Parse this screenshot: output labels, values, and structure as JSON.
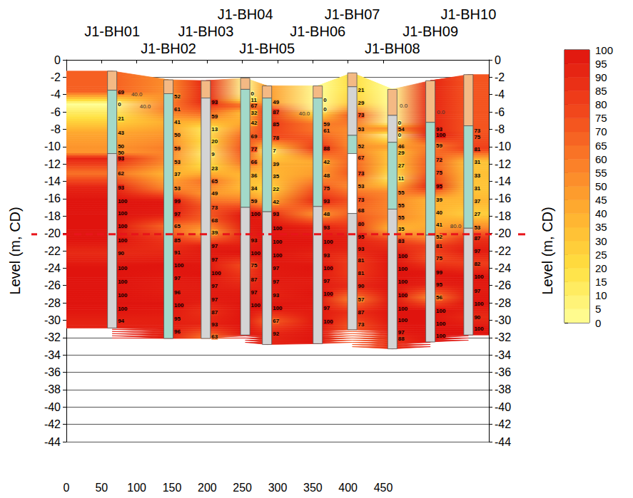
{
  "chart_data": {
    "type": "contour",
    "ylabel": "Level (m, CD)",
    "y2label": "Level (m, CD)",
    "xlim": [
      0,
      600
    ],
    "xticks": [
      0,
      50,
      100,
      150,
      200,
      250,
      300,
      350,
      400,
      450
    ],
    "ylim": [
      -44,
      0
    ],
    "yticks": [
      -44,
      -42,
      -40,
      -38,
      -36,
      -34,
      -32,
      -30,
      -28,
      -26,
      -24,
      -22,
      -20,
      -18,
      -16,
      -14,
      -12,
      -10,
      -8,
      -6,
      -4,
      -2,
      0
    ],
    "y2lim": [
      -44,
      0
    ],
    "y2ticks": [
      -44,
      -42,
      -40,
      -38,
      -36,
      -34,
      -32,
      -30,
      -28,
      -26,
      -24,
      -22,
      -20,
      -18,
      -16,
      -14,
      -12,
      -10,
      -8,
      -6,
      -4,
      -2,
      0
    ],
    "grid": true,
    "colorbar": {
      "range": [
        0,
        100
      ],
      "ticks": [
        0,
        5,
        10,
        15,
        20,
        25,
        30,
        35,
        40,
        45,
        50,
        55,
        60,
        65,
        70,
        75,
        80,
        85,
        90,
        95,
        100
      ],
      "colors": [
        "#ffff99",
        "#ffe040",
        "#ffb030",
        "#fa7a28",
        "#f0401a",
        "#e0140e"
      ]
    },
    "boreholes": [
      {
        "name": "J1-BH01",
        "x": 65,
        "layers": [
          {
            "top": -1.3,
            "bottom": -3.5,
            "color": "#f4b984"
          },
          {
            "top": -3.5,
            "bottom": -10.8,
            "color": "#a3d9c9"
          },
          {
            "top": -10.8,
            "bottom": -30.9,
            "color": "#d4d4d4"
          }
        ],
        "levels": [
          -3.7,
          -5.1,
          -6.8,
          -8.4,
          -10.0,
          -10.7,
          -11.4,
          -13.1,
          -14.7,
          -16.3,
          -17.7,
          -19.2,
          -20.8,
          -22.3,
          -24.0,
          -25.6,
          -27.1,
          -28.7,
          -30.1
        ],
        "values": [
          69,
          0,
          21,
          43,
          50,
          50,
          93,
          62,
          93,
          100,
          100,
          100,
          100,
          90,
          100,
          100,
          100,
          100,
          94
        ]
      },
      {
        "name": "J1-BH02",
        "x": 145,
        "layers": [
          {
            "top": -2.3,
            "bottom": -3.9,
            "color": "#f4b984"
          },
          {
            "top": -3.9,
            "bottom": -32.1,
            "color": "#a3d9c9"
          }
        ],
        "levels": [
          -4.2,
          -5.7,
          -7.2,
          -8.7,
          -10.2,
          -11.8,
          -13.2,
          -14.8,
          -16.3,
          -17.8,
          -19.2,
          -20.8,
          -22.2,
          -23.7,
          -25.2,
          -26.8,
          -28.3,
          -29.8,
          -31.3
        ],
        "values": [
          52,
          61,
          41,
          50,
          59,
          53,
          37,
          53,
          99,
          97,
          65,
          85,
          91,
          100,
          97,
          96,
          100,
          95,
          96
        ]
      },
      {
        "name": "J1-BH03",
        "x": 198,
        "layers": [
          {
            "top": -2.4,
            "bottom": -4.4,
            "color": "#f4b984"
          },
          {
            "top": -4.4,
            "bottom": -32.1,
            "color": "#d4d4d4"
          }
        ],
        "levels": [
          -4.9,
          -6.5,
          -8.0,
          -9.4,
          -10.9,
          -12.5,
          -14.0,
          -15.4,
          -17.0,
          -18.5,
          -19.9,
          -21.5,
          -23.0,
          -24.6,
          -26.1,
          -27.6,
          -29.1,
          -30.5,
          -31.9
        ],
        "values": [
          93,
          59,
          13,
          20,
          9,
          23,
          65,
          49,
          73,
          68,
          39,
          97,
          97,
          100,
          97,
          97,
          87,
          93,
          63
        ]
      },
      {
        "name": "J1-BH04",
        "x": 254,
        "layers": [
          {
            "top": -2.1,
            "bottom": -3.4,
            "color": "#f4b984"
          },
          {
            "top": -3.4,
            "bottom": -17.0,
            "color": "#a3d9c9"
          },
          {
            "top": -17.0,
            "bottom": -31.7,
            "color": "#d4d4d4"
          }
        ],
        "levels": [
          -3.9,
          -4.6,
          -5.3,
          -6.1,
          -7.3,
          -8.8,
          -10.3,
          -11.8,
          -13.3,
          -14.8,
          -16.3,
          -17.8,
          -20.8,
          -22.3,
          -23.7,
          -25.3,
          -26.8,
          -28.3
        ],
        "values": [
          0,
          11,
          67,
          32,
          42,
          69,
          77,
          66,
          36,
          34,
          59,
          100,
          93,
          100,
          75,
          87,
          97,
          100
        ]
      },
      {
        "name": "J1-BH05",
        "x": 285,
        "layers": [
          {
            "top": -3.0,
            "bottom": -4.4,
            "color": "#f4b984"
          },
          {
            "top": -4.4,
            "bottom": -17.5,
            "color": "#a3d9c9"
          },
          {
            "top": -17.5,
            "bottom": -32.8,
            "color": "#d4d4d4"
          }
        ],
        "levels": [
          -4.9,
          -6.0,
          -7.4,
          -9.0,
          -10.5,
          -12.0,
          -13.4,
          -14.9,
          -16.4,
          -17.8,
          -19.4,
          -21.0,
          -22.5,
          -24.0,
          -25.6,
          -27.1,
          -28.6,
          -30.1,
          -31.6
        ],
        "values": [
          49,
          87,
          85,
          78,
          7,
          39,
          35,
          22,
          42,
          93,
          100,
          100,
          100,
          97,
          97,
          93,
          100,
          67,
          92
        ]
      },
      {
        "name": "J1-BH06",
        "x": 357,
        "layers": [
          {
            "top": -3.0,
            "bottom": -4.4,
            "color": "#f4b984"
          },
          {
            "top": -4.4,
            "bottom": -16.9,
            "color": "#a3d9c9"
          },
          {
            "top": -16.9,
            "bottom": -32.7,
            "color": "#d4d4d4"
          }
        ],
        "levels": [
          -4.6,
          -5.7,
          -7.4,
          -8.2,
          -10.2,
          -11.8,
          -13.3,
          -14.8,
          -16.3,
          -17.8,
          -19.3,
          -21.0,
          -22.5,
          -24.0,
          -25.5,
          -27.0,
          -28.6,
          -30.2
        ],
        "values": [
          0,
          0,
          59,
          61,
          88,
          42,
          48,
          75,
          93,
          48,
          93,
          100,
          93,
          100,
          97,
          100,
          97,
          100
        ]
      },
      {
        "name": "J1-BH07",
        "x": 406,
        "layers": [
          {
            "top": -1.5,
            "bottom": -3.1,
            "color": "#f4b984"
          },
          {
            "top": -3.1,
            "bottom": -8.7,
            "color": "#d4d4d4"
          },
          {
            "top": -8.7,
            "bottom": -10.8,
            "color": "#a3d9c9"
          },
          {
            "top": -10.8,
            "bottom": -17.7,
            "color": "#ffffff"
          },
          {
            "top": -17.7,
            "bottom": -31.1,
            "color": "#d4d4d4"
          }
        ],
        "levels": [
          -3.5,
          -5.0,
          -6.4,
          -8.0,
          -10.0,
          -11.3,
          -13.1,
          -14.6,
          -16.1,
          -17.4,
          -18.9,
          -20.4,
          -21.8,
          -23.1,
          -24.6,
          -26.1,
          -27.6,
          -29.1,
          -30.5
        ],
        "values": [
          21,
          29,
          73,
          53,
          52,
          67,
          73,
          53,
          73,
          68,
          80,
          95,
          93,
          81,
          81,
          90,
          57,
          87,
          73
        ]
      },
      {
        "name": "J1-BH08",
        "x": 463,
        "layers": [
          {
            "top": -3.4,
            "bottom": -6.4,
            "color": "#f4b984"
          },
          {
            "top": -6.4,
            "bottom": -9.5,
            "color": "#d4d4d4"
          },
          {
            "top": -9.5,
            "bottom": -17.2,
            "color": "#a3d9c9"
          },
          {
            "top": -17.2,
            "bottom": -33.3,
            "color": "#d4d4d4"
          }
        ],
        "levels": [
          -7.3,
          -8.0,
          -8.7,
          -10.0,
          -10.7,
          -12.2,
          -13.7,
          -15.3,
          -16.8,
          -18.2,
          -19.5,
          -20.9,
          -22.6,
          -24.1,
          -25.6,
          -27.1,
          -28.7,
          -30.0,
          -31.4,
          -32.1
        ],
        "values": [
          0,
          54,
          0,
          46,
          29,
          27,
          11,
          55,
          55,
          55,
          35,
          83,
          100,
          100,
          100,
          100,
          100,
          100,
          97,
          88
        ]
      },
      {
        "name": "J1-BH09",
        "x": 517,
        "layers": [
          {
            "top": -2.4,
            "bottom": -7.2,
            "color": "#f4b984"
          },
          {
            "top": -7.2,
            "bottom": -20.2,
            "color": "#a3d9c9"
          },
          {
            "top": -20.2,
            "bottom": -32.5,
            "color": "#d4d4d4"
          }
        ],
        "levels": [
          -8.0,
          -8.7,
          -9.9,
          -11.5,
          -13.0,
          -14.6,
          -16.1,
          -17.6,
          -19.0,
          -20.4,
          -21.5,
          -22.9,
          -24.5,
          -25.9,
          -27.4,
          -28.9,
          -30.4,
          -31.8
        ],
        "values": [
          93,
          100,
          59,
          72,
          75,
          95,
          39,
          40,
          41,
          52,
          81,
          75,
          99,
          95,
          56,
          100,
          100,
          100
        ]
      },
      {
        "name": "J1-BH10",
        "x": 571,
        "layers": [
          {
            "top": -1.7,
            "bottom": -7.6,
            "color": "#f4b984"
          },
          {
            "top": -7.6,
            "bottom": -19.4,
            "color": "#a3d9c9"
          },
          {
            "top": -19.4,
            "bottom": -31.7,
            "color": "#d4d4d4"
          }
        ],
        "levels": [
          -8.2,
          -8.9,
          -10.3,
          -11.8,
          -13.3,
          -14.8,
          -16.3,
          -17.8,
          -19.3,
          -20.6,
          -22.0,
          -23.5,
          -25.0,
          -26.6,
          -28.1,
          -29.7,
          -31.0
        ],
        "values": [
          73,
          75,
          81,
          31,
          33,
          31,
          37,
          27,
          53,
          87,
          97,
          82,
          100,
          97,
          100,
          90,
          100
        ]
      }
    ],
    "reference_line": {
      "y": -20.1,
      "color": "#e8141b",
      "line_style": "dashed"
    },
    "annotations": [
      {
        "text": "40.0",
        "x": 100,
        "y": -4.0
      },
      {
        "text": "40.0",
        "x": 112,
        "y": -5.4
      },
      {
        "text": "40.0",
        "x": 338,
        "y": -6.2
      },
      {
        "text": "0.0",
        "x": 479,
        "y": -5.3
      },
      {
        "text": "0.0",
        "x": 532,
        "y": -6.0
      },
      {
        "text": "80.0",
        "x": 553,
        "y": -19.2
      }
    ]
  }
}
